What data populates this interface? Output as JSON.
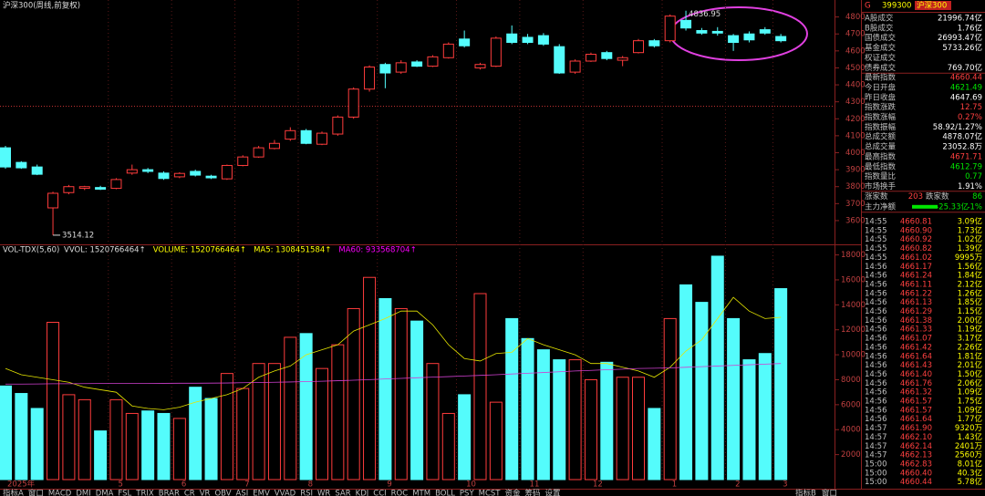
{
  "title": "沪深300(周线,前复权)",
  "chart_data": [
    {
      "type": "candlestick",
      "categories": [
        "2025年",
        null,
        null,
        null,
        null,
        null,
        null,
        "5",
        null,
        null,
        null,
        "6",
        null,
        null,
        null,
        "7",
        null,
        null,
        null,
        "8",
        null,
        null,
        null,
        null,
        "9",
        null,
        null,
        null,
        null,
        "10",
        null,
        null,
        null,
        "11",
        null,
        null,
        null,
        "12",
        null,
        null,
        null,
        null,
        "1",
        null,
        null,
        null,
        "2",
        null,
        null,
        "3"
      ],
      "open": [
        4029,
        3943,
        3916,
        3675,
        3765,
        3790,
        3795,
        3790,
        3880,
        3900,
        3880,
        3858,
        3890,
        3862,
        3846,
        3925,
        3975,
        4025,
        4080,
        4130,
        4050,
        4110,
        4210,
        4375,
        4520,
        4475,
        4535,
        4510,
        4560,
        4670,
        4500,
        4510,
        4700,
        4680,
        4690,
        4625,
        4475,
        4540,
        4590,
        4545,
        4590,
        4660,
        4660,
        4780,
        4720,
        4715,
        4690,
        4700,
        4725,
        4685
      ],
      "high": [
        4040,
        3950,
        3930,
        3770,
        3810,
        3805,
        3805,
        3850,
        3930,
        3910,
        3890,
        3885,
        3900,
        3870,
        3930,
        3985,
        4040,
        4075,
        4150,
        4140,
        4125,
        4220,
        4385,
        4515,
        4530,
        4545,
        4545,
        4575,
        4650,
        4720,
        4530,
        4685,
        4750,
        4700,
        4705,
        4640,
        4550,
        4590,
        4600,
        4570,
        4670,
        4670,
        4815,
        4836.95,
        4735,
        4740,
        4700,
        4715,
        4740,
        4700
      ],
      "low": [
        3905,
        3905,
        3868,
        3514.12,
        3755,
        3780,
        3780,
        3785,
        3870,
        3880,
        3840,
        3850,
        3860,
        3845,
        3840,
        3920,
        3970,
        4020,
        4070,
        4050,
        4045,
        4100,
        4200,
        4360,
        4380,
        4465,
        4505,
        4505,
        4555,
        4620,
        4490,
        4505,
        4640,
        4640,
        4630,
        4465,
        4465,
        4535,
        4545,
        4510,
        4585,
        4620,
        4650,
        4720,
        4695,
        4690,
        4600,
        4650,
        4695,
        4650
      ],
      "close": [
        3916,
        3911,
        3873,
        3761,
        3800,
        3800,
        3785,
        3842,
        3900,
        3890,
        3848,
        3878,
        3868,
        3852,
        3925,
        3975,
        4029,
        4055,
        4130,
        4055,
        4115,
        4210,
        4375,
        4505,
        4470,
        4530,
        4510,
        4565,
        4640,
        4630,
        4520,
        4675,
        4650,
        4650,
        4640,
        4470,
        4540,
        4580,
        4555,
        4560,
        4660,
        4630,
        4805,
        4735,
        4705,
        4705,
        4650,
        4665,
        4705,
        4660
      ],
      "colors": {
        "up": "#ff3c3c",
        "down": "#54fcfc"
      },
      "ylim": [
        3460,
        4900
      ],
      "yticks": [
        3600,
        3700,
        3800,
        3900,
        4000,
        4100,
        4200,
        4300,
        4400,
        4500,
        4600,
        4700,
        4800
      ]
    },
    {
      "type": "bar",
      "title": "VOL-TDX(5,60)",
      "legend": [
        {
          "text": "VVOL: 1520766464↑",
          "color": "#dddddd"
        },
        {
          "text": "VOLUME: 1520766464↑",
          "color": "#ffff00"
        },
        {
          "text": "MA5: 1308451584↑",
          "color": "#ffff00"
        },
        {
          "text": "MA60: 933568704↑",
          "color": "#ff00ff"
        }
      ],
      "values": [
        7500,
        6900,
        5700,
        12600,
        6800,
        6400,
        3900,
        6400,
        5300,
        5500,
        5300,
        4900,
        7400,
        6500,
        8500,
        7300,
        9300,
        9300,
        11400,
        11700,
        8900,
        10800,
        13700,
        16200,
        14500,
        13700,
        12700,
        9300,
        5300,
        6800,
        14900,
        6200,
        12900,
        11300,
        10400,
        9600,
        9600,
        8000,
        9400,
        8200,
        8200,
        5700,
        12900,
        15600,
        14200,
        17900,
        12900,
        9600,
        10100,
        15300
      ],
      "series": [
        {
          "color": "#e6e600",
          "values": [
            8900,
            8400,
            8200,
            8000,
            7800,
            7400,
            7200,
            7000,
            5900,
            5700,
            5600,
            5800,
            6200,
            6500,
            6800,
            7300,
            8200,
            8700,
            9100,
            10000,
            10400,
            10800,
            11900,
            12400,
            12900,
            13500,
            13500,
            12400,
            10800,
            9700,
            9500,
            10100,
            10200,
            11300,
            10800,
            10400,
            10000,
            9300,
            9300,
            9000,
            8700,
            8200,
            9000,
            10300,
            11200,
            12900,
            14600,
            13500,
            12900,
            13000
          ]
        },
        {
          "color": "#d040d0",
          "values": [
            7650,
            7650,
            7660,
            7680,
            7680,
            7690,
            7700,
            7700,
            7700,
            7700,
            7710,
            7720,
            7720,
            7730,
            7740,
            7760,
            7780,
            7800,
            7820,
            7850,
            7880,
            7920,
            7960,
            8010,
            8060,
            8110,
            8160,
            8210,
            8250,
            8300,
            8350,
            8400,
            8460,
            8520,
            8580,
            8640,
            8700,
            8750,
            8800,
            8850,
            8900,
            8920,
            8950,
            9000,
            9050,
            9100,
            9150,
            9200,
            9250,
            9300
          ]
        }
      ],
      "ylim": [
        0,
        18700
      ],
      "yticks": [
        2000,
        4000,
        6000,
        8000,
        10000,
        12000,
        14000,
        16000,
        18000
      ]
    }
  ],
  "panel": {
    "prefix": "G",
    "code": "399300",
    "name": "沪深300",
    "rows": [
      {
        "label": "A股成交",
        "value": "21996.74亿",
        "color": "#ffffff"
      },
      {
        "label": "B股成交",
        "value": "1.76亿",
        "color": "#ffffff"
      },
      {
        "label": "国债成交",
        "value": "26993.47亿",
        "color": "#ffffff"
      },
      {
        "label": "基金成交",
        "value": "5733.26亿",
        "color": "#ffffff"
      },
      {
        "label": "权证成交"
      },
      {
        "label": "债券成交",
        "value": "769.70亿",
        "color": "#ffffff"
      },
      {
        "label": "最新指数",
        "value": "4660.44",
        "color": "#ff4040"
      },
      {
        "label": "今日开盘",
        "value": "4621.49",
        "color": "#00e600"
      },
      {
        "label": "昨日收盘",
        "value": "4647.69",
        "color": "#ffffff"
      },
      {
        "label": "指数涨跌",
        "value": "12.75",
        "color": "#ff4040"
      },
      {
        "label": "指数涨幅",
        "value": "0.27%",
        "color": "#ff4040"
      },
      {
        "label": "指数振幅",
        "value": "58.92/1.27%",
        "color": "#ffffff"
      },
      {
        "label": "总成交额",
        "value": "4878.07亿",
        "color": "#ffffff"
      },
      {
        "label": "总成交量",
        "value": "23052.8万",
        "color": "#ffffff"
      },
      {
        "label": "最高指数",
        "value": "4671.71",
        "color": "#ff4040"
      },
      {
        "label": "最低指数",
        "value": "4612.79",
        "color": "#00e600"
      },
      {
        "label": "指数量比",
        "value": "0.77",
        "color": "#00e600"
      },
      {
        "label": "市场换手",
        "value": "1.91%",
        "color": "#ffffff"
      }
    ],
    "up_label": "涨家数",
    "up_count": "203",
    "down_label": "跌家数",
    "down_count": "86",
    "flow_label": "主力净额",
    "flow_value": "-25.33亿",
    "flow_pct": "-1%"
  },
  "trades": [
    [
      "14:55",
      "4660.81",
      "3.09亿"
    ],
    [
      "14:55",
      "4660.90",
      "1.73亿"
    ],
    [
      "14:55",
      "4660.92",
      "1.02亿"
    ],
    [
      "14:55",
      "4660.82",
      "1.39亿"
    ],
    [
      "14:55",
      "4661.02",
      "9995万"
    ],
    [
      "14:56",
      "4661.17",
      "1.56亿"
    ],
    [
      "14:56",
      "4661.24",
      "1.84亿"
    ],
    [
      "14:56",
      "4661.11",
      "2.12亿"
    ],
    [
      "14:56",
      "4661.22",
      "1.26亿"
    ],
    [
      "14:56",
      "4661.13",
      "1.85亿"
    ],
    [
      "14:56",
      "4661.29",
      "1.15亿"
    ],
    [
      "14:56",
      "4661.38",
      "2.00亿"
    ],
    [
      "14:56",
      "4661.33",
      "1.19亿"
    ],
    [
      "14:56",
      "4661.07",
      "3.17亿"
    ],
    [
      "14:56",
      "4661.42",
      "2.26亿"
    ],
    [
      "14:56",
      "4661.64",
      "1.81亿"
    ],
    [
      "14:56",
      "4661.43",
      "2.01亿"
    ],
    [
      "14:56",
      "4661.40",
      "1.50亿"
    ],
    [
      "14:56",
      "4661.76",
      "2.06亿"
    ],
    [
      "14:56",
      "4661.32",
      "1.09亿"
    ],
    [
      "14:56",
      "4661.57",
      "1.75亿"
    ],
    [
      "14:56",
      "4661.57",
      "1.09亿"
    ],
    [
      "14:56",
      "4661.64",
      "1.77亿"
    ],
    [
      "14:57",
      "4661.90",
      "9320万"
    ],
    [
      "14:57",
      "4662.10",
      "1.43亿"
    ],
    [
      "14:57",
      "4662.14",
      "2401万"
    ],
    [
      "14:57",
      "4662.13",
      "2560万"
    ],
    [
      "15:00",
      "4662.83",
      "8.01亿"
    ],
    [
      "15:00",
      "4660.40",
      "40.3亿"
    ],
    [
      "15:00",
      "4660.44",
      "5.78亿"
    ]
  ],
  "tabs": [
    "指标A",
    "窗口",
    "MACD",
    "DMI",
    "DMA",
    "FSL",
    "TRIX",
    "BRAR",
    "CR",
    "VR",
    "OBV",
    "ASI",
    "EMV",
    "VVAD",
    "RSI",
    "WR",
    "SAR",
    "KDJ",
    "CCI",
    "ROC",
    "MTM",
    "BOLL",
    "PSY",
    "MCST",
    "资金",
    "筹码",
    "设置"
  ],
  "tabs_right": [
    "指标B",
    "窗口"
  ]
}
